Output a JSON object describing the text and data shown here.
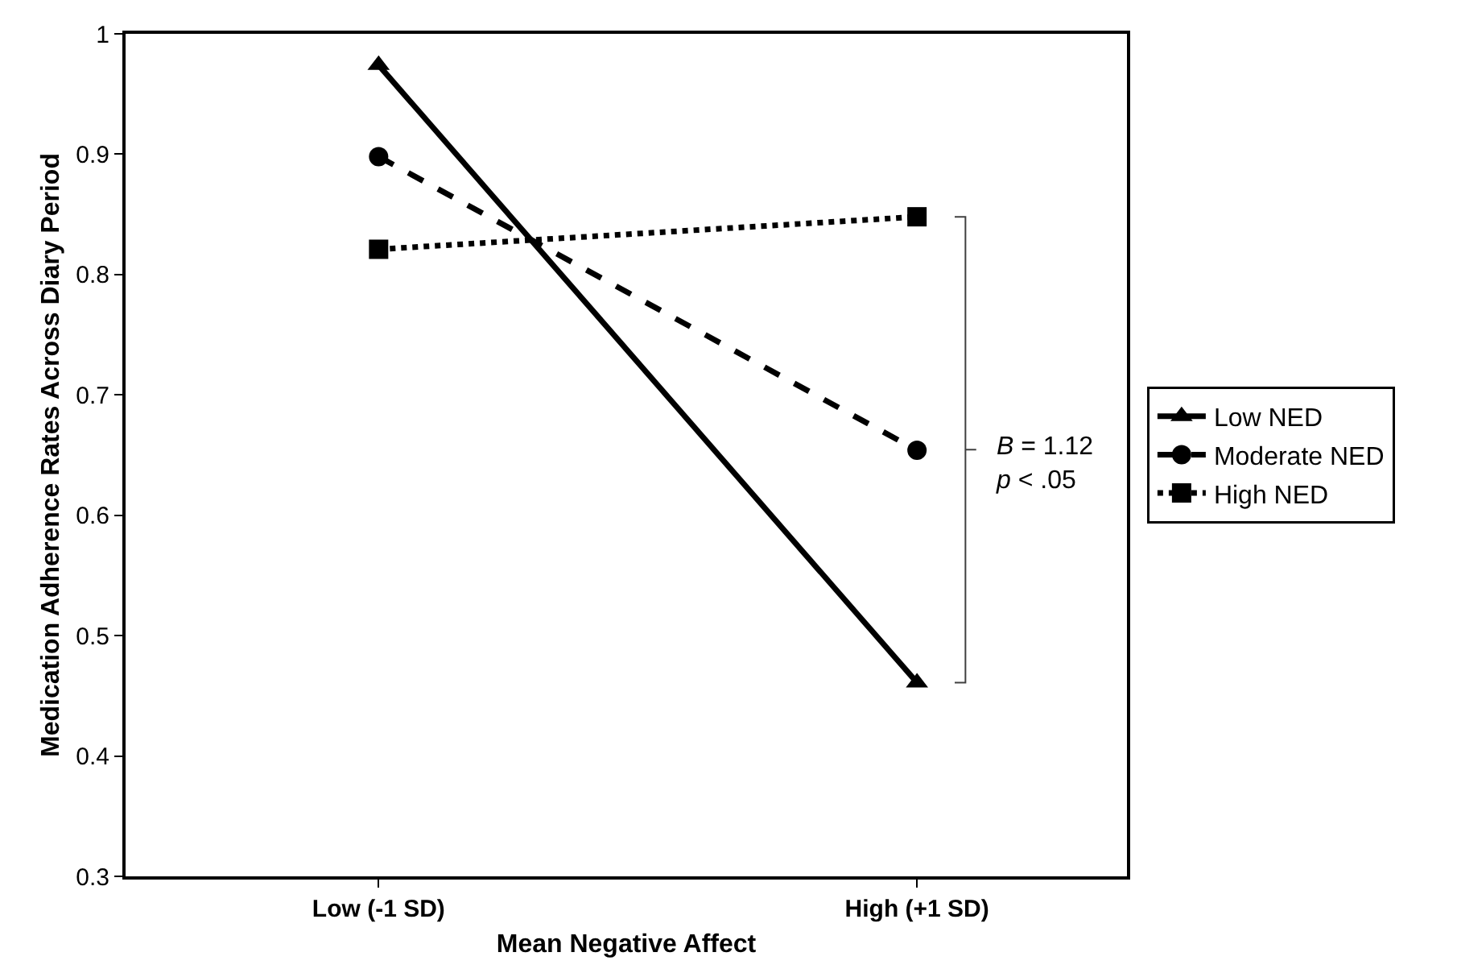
{
  "chart_data": {
    "type": "line",
    "xlabel": "Mean Negative Affect",
    "ylabel": "Medication Adherence Rates Across Diary Period",
    "categories": [
      "Low (-1 SD)",
      "High (+1 SD)"
    ],
    "series": [
      {
        "name": "Low NED",
        "color": "#000000",
        "values": [
          0.974,
          0.461
        ],
        "marker": "triangle",
        "line_style": "solid"
      },
      {
        "name": "Moderate NED",
        "color": "#000000",
        "values": [
          0.898,
          0.654
        ],
        "marker": "circle",
        "line_style": "dashed"
      },
      {
        "name": "High NED",
        "color": "#000000",
        "values": [
          0.821,
          0.848
        ],
        "marker": "square",
        "line_style": "dotted"
      }
    ],
    "ylim": [
      0.3,
      1
    ],
    "yticks": [
      0.3,
      0.4,
      0.5,
      0.6,
      0.7,
      0.8,
      0.9,
      1
    ],
    "annotations": [
      "B = 1.12\np < .05"
    ],
    "legend": "right"
  }
}
